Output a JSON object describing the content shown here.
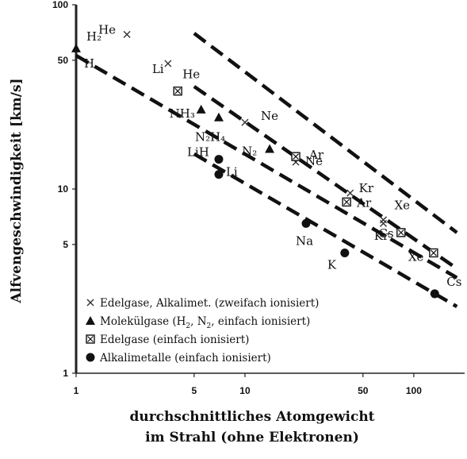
{
  "chart_data": {
    "type": "scatter",
    "xscale": "log",
    "yscale": "log",
    "xlim": [
      1,
      200
    ],
    "ylim": [
      1,
      100
    ],
    "xlabel_line1": "durchschnittliches Atomgewicht",
    "xlabel_line2": "im Strahl (ohne Elektronen)",
    "ylabel": "Alfvengeschwindigkeit [km/s]",
    "x_ticks": [
      {
        "value": 1,
        "label": "1"
      },
      {
        "value": 5,
        "label": "5"
      },
      {
        "value": 10,
        "label": "10"
      },
      {
        "value": 50,
        "label": "50"
      },
      {
        "value": 100,
        "label": "100"
      }
    ],
    "y_ticks": [
      {
        "value": 1,
        "label": "1"
      },
      {
        "value": 5,
        "label": "5"
      },
      {
        "value": 10,
        "label": "10"
      },
      {
        "value": 50,
        "label": "50"
      },
      {
        "value": 100,
        "label": "100"
      }
    ],
    "series": [
      {
        "marker": "cross",
        "legend": "Edelgase, Alkalimet. (zweifach ionisiert)",
        "points": [
          {
            "x": 2,
            "y": 69,
            "label": "He"
          },
          {
            "x": 3.5,
            "y": 48,
            "label": "Li"
          },
          {
            "x": 10,
            "y": 23,
            "label": "Ne"
          },
          {
            "x": 20,
            "y": 14,
            "label": "Ar"
          },
          {
            "x": 42,
            "y": 9.5,
            "label": "Kr"
          },
          {
            "x": 66,
            "y": 6.5,
            "label": "Xe"
          },
          {
            "x": 66,
            "y": 6.8,
            "label": "Cs"
          }
        ],
        "fit": [
          [
            5,
            70
          ],
          [
            180,
            5.8
          ]
        ]
      },
      {
        "marker": "triangle",
        "legend_parts": [
          "Molekülgase (H",
          "2",
          ", N",
          "2",
          ", einfach ionisiert)"
        ],
        "points": [
          {
            "x": 1,
            "y": 58,
            "label": "H₂"
          },
          {
            "x": 5.5,
            "y": 27,
            "label": "NH₃"
          },
          {
            "x": 7,
            "y": 24.5,
            "label": "N₂H₄"
          },
          {
            "x": 14,
            "y": 16.5,
            "label": "N₂"
          }
        ],
        "fit": [
          [
            1,
            53
          ],
          [
            180,
            3.3
          ]
        ]
      },
      {
        "marker": "boxed-cross",
        "legend": "Edelgase (einfach ionisiert)",
        "points": [
          {
            "x": 4,
            "y": 34,
            "label": "He"
          },
          {
            "x": 20,
            "y": 15,
            "label": "Ne"
          },
          {
            "x": 40,
            "y": 8.5,
            "label": "Ar"
          },
          {
            "x": 84,
            "y": 5.8,
            "label": "Kr"
          },
          {
            "x": 131,
            "y": 4.5,
            "label": "Xe"
          }
        ]
      },
      {
        "marker": "circle",
        "legend": "Alkalimetalle (einfach ionisiert)",
        "points": [
          {
            "x": 7,
            "y": 14.5,
            "label": "LiH"
          },
          {
            "x": 7,
            "y": 12,
            "label": "Li"
          },
          {
            "x": 23,
            "y": 6.5,
            "label": "Na"
          },
          {
            "x": 39,
            "y": 4.5,
            "label": "K"
          },
          {
            "x": 133,
            "y": 2.7,
            "label": "Cs"
          }
        ],
        "fit": [
          [
            5,
            15.5
          ],
          [
            180,
            2.3
          ]
        ]
      }
    ],
    "extra_fit": [
      [
        5,
        36
      ],
      [
        180,
        3.7
      ]
    ],
    "legend_position": "bottom-left"
  }
}
